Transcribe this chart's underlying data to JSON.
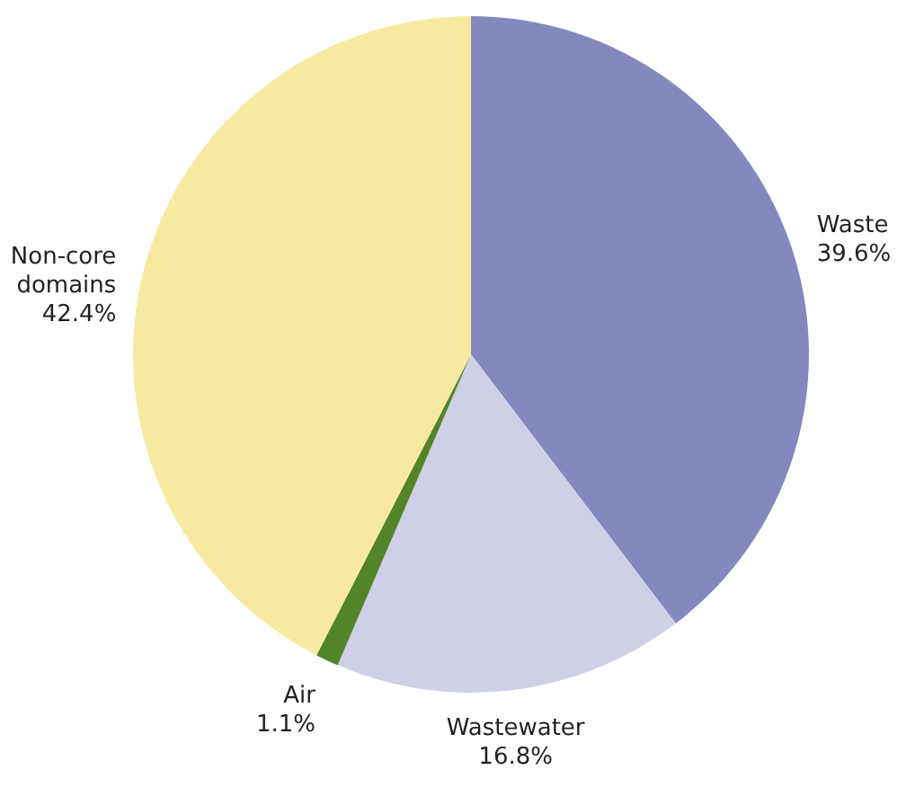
{
  "chart_data": {
    "type": "pie",
    "categories": [
      "Waste",
      "Wastewater",
      "Air",
      "Non-core domains"
    ],
    "values": [
      39.6,
      16.8,
      1.1,
      42.4
    ],
    "value_labels": [
      "39.6%",
      "16.8%",
      "1.1%",
      "42.4%"
    ],
    "colors": [
      "#8389be",
      "#cfd0e8",
      "#548429",
      "#f8e9a1"
    ]
  }
}
